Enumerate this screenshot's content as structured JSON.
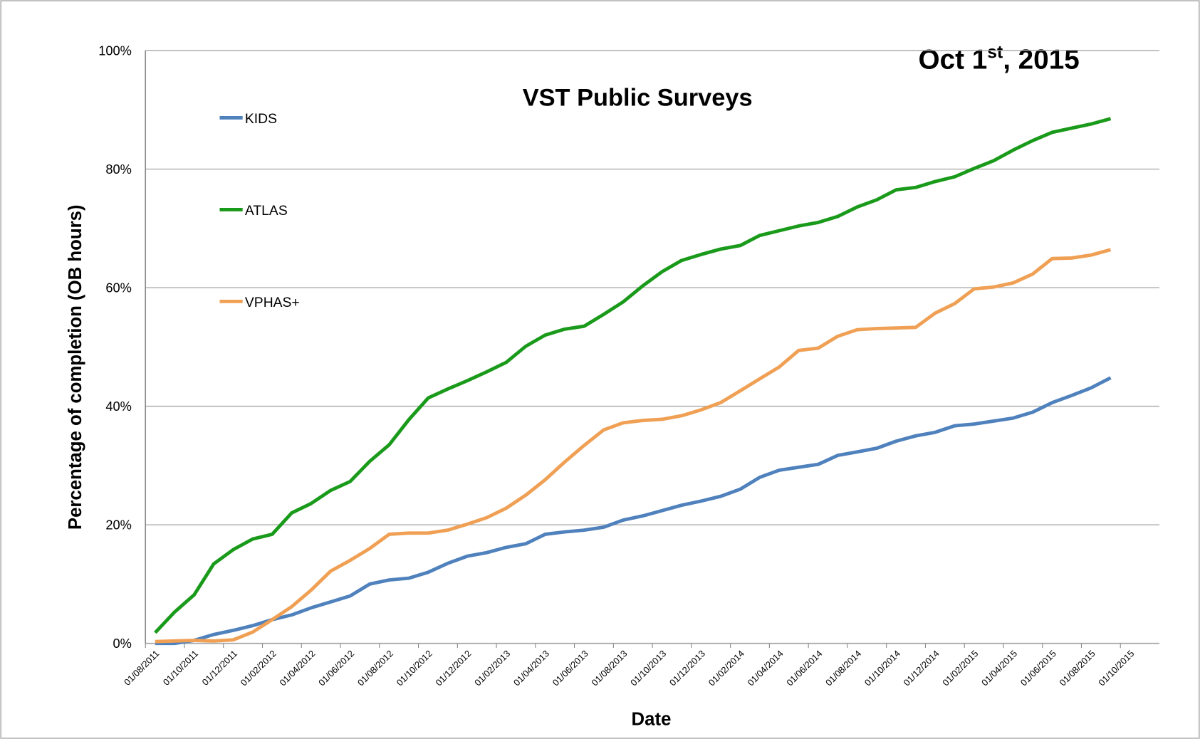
{
  "chart_data": {
    "type": "line",
    "title": "VST Public Surveys",
    "annotation": [
      "Oct 1",
      "st",
      ", 2015"
    ],
    "x_label": "Date",
    "y_label": "Percentage of completion (OB hours)",
    "categories": [
      "01/08/2011",
      null,
      "01/10/2011",
      null,
      "01/12/2011",
      null,
      "01/02/2012",
      null,
      "01/04/2012",
      null,
      "01/06/2012",
      null,
      "01/08/2012",
      null,
      "01/10/2012",
      null,
      "01/12/2012",
      null,
      "01/02/2013",
      null,
      "01/04/2013",
      null,
      "01/06/2013",
      null,
      "01/08/2013",
      null,
      "01/10/2013",
      null,
      "01/12/2013",
      null,
      "01/02/2014",
      null,
      "01/04/2014",
      null,
      "01/06/2014",
      null,
      "01/08/2014",
      null,
      "01/10/2014",
      null,
      "01/12/2014",
      null,
      "01/02/2015",
      null,
      "01/04/2015",
      null,
      "01/06/2015",
      null,
      "01/08/2015",
      null,
      "01/10/2015",
      null
    ],
    "series": [
      {
        "name": "KIDS",
        "color": "#4f81bd",
        "values": [
          0,
          0,
          0.5,
          1.5,
          2.2,
          3,
          4,
          4.8,
          6,
          7,
          8,
          10,
          10.7,
          11,
          12,
          13.5,
          14.7,
          15.3,
          16.2,
          16.8,
          18.4,
          18.8,
          19.1,
          19.6,
          20.8,
          21.5,
          22.4,
          23.3,
          24,
          24.8,
          26,
          28,
          29.2,
          29.7,
          30.2,
          31.7,
          32.3,
          32.9,
          34.1,
          35,
          35.6,
          36.7,
          37,
          37.5,
          38,
          39,
          40.6,
          41.8,
          43.1,
          44.8,
          null,
          null
        ]
      },
      {
        "name": "ATLAS",
        "color": "#1a9a1a",
        "values": [
          1.8,
          5.3,
          8.2,
          13.4,
          15.8,
          17.6,
          18.4,
          22,
          23.6,
          25.8,
          27.3,
          30.7,
          33.5,
          37.7,
          41.4,
          42.9,
          44.3,
          45.8,
          47.4,
          50.1,
          52,
          53,
          53.5,
          55.5,
          57.6,
          60.3,
          62.7,
          64.6,
          65.6,
          66.5,
          67.1,
          68.8,
          69.6,
          70.4,
          71,
          72,
          73.6,
          74.8,
          76.5,
          76.9,
          77.9,
          78.7,
          80.1,
          81.4,
          83.2,
          84.8,
          86.2,
          86.9,
          87.6,
          88.5,
          null,
          null
        ]
      },
      {
        "name": "VPHAS+",
        "color": "#f0a054",
        "values": [
          0.3,
          0.4,
          0.5,
          0.4,
          0.6,
          1.9,
          4,
          6.2,
          9,
          12.2,
          14,
          16,
          18.4,
          18.6,
          18.6,
          19.1,
          20.1,
          21.2,
          22.8,
          25,
          27.6,
          30.6,
          33.4,
          36,
          37.2,
          37.6,
          37.8,
          38.4,
          39.4,
          40.6,
          42.6,
          44.6,
          46.6,
          49.4,
          49.8,
          51.8,
          52.9,
          53.1,
          53.2,
          53.3,
          55.7,
          57.3,
          59.8,
          60.1,
          60.8,
          62.3,
          64.9,
          65,
          65.5,
          66.4,
          null,
          null
        ]
      }
    ],
    "ylim": [
      0,
      100
    ],
    "yticks": [
      {
        "value": 0,
        "label": "0%"
      },
      {
        "value": 20,
        "label": "20%"
      },
      {
        "value": 40,
        "label": "40%"
      },
      {
        "value": 60,
        "label": "60%"
      },
      {
        "value": 80,
        "label": "80%"
      },
      {
        "value": 100,
        "label": "100%"
      }
    ],
    "grid": true,
    "legend": "left"
  }
}
